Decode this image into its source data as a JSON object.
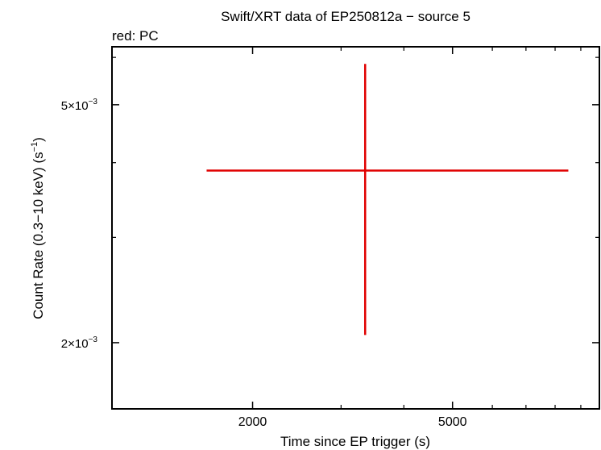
{
  "chart_data": {
    "type": "scatter",
    "title": "Swift/XRT data of EP250812a − source 5",
    "subtitle": "red: PC",
    "xlabel": "Time since EP trigger (s)",
    "ylabel_main": "Count Rate (0.3−10 keV) (s",
    "ylabel_exp": "−1",
    "ylabel_close": ")",
    "x_scale": "log",
    "y_scale": "log",
    "xlim": [
      1050,
      9800
    ],
    "ylim": [
      0.00155,
      0.00625
    ],
    "x_ticks": [
      {
        "value": 2000,
        "label": "2000"
      },
      {
        "value": 5000,
        "label": "5000"
      }
    ],
    "x_minor_ticks": [
      3000,
      4000,
      6000,
      7000,
      8000,
      9000
    ],
    "y_ticks": [
      {
        "value": 0.005,
        "mantissa": "5×10",
        "exponent": "−3"
      },
      {
        "value": 0.002,
        "mantissa": "2×10",
        "exponent": "−3"
      }
    ],
    "y_minor_ticks": [
      0.003,
      0.004,
      0.006
    ],
    "series": [
      {
        "color": "#e00000",
        "points": [
          {
            "x": 3350,
            "x_lo": 1620,
            "x_hi": 8500,
            "y": 0.00388,
            "y_lo": 0.00206,
            "y_hi": 0.00585
          }
        ]
      }
    ]
  }
}
